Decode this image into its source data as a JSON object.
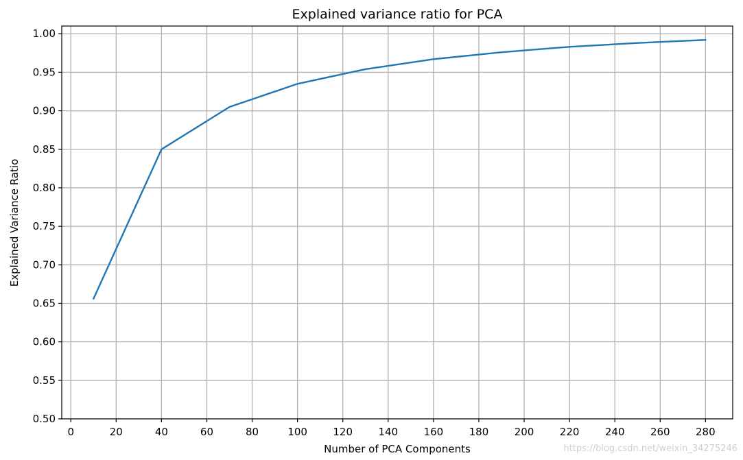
{
  "chart_data": {
    "type": "line",
    "title": "Explained variance ratio for PCA",
    "xlabel": "Number of PCA Components",
    "ylabel": "Explained Variance Ratio",
    "xlim": [
      -4,
      292
    ],
    "ylim": [
      0.5,
      1.01
    ],
    "xticks": [
      0,
      20,
      40,
      60,
      80,
      100,
      120,
      140,
      160,
      180,
      200,
      220,
      240,
      260,
      280
    ],
    "yticks": [
      0.5,
      0.55,
      0.6,
      0.65,
      0.7,
      0.75,
      0.8,
      0.85,
      0.9,
      0.95,
      1.0
    ],
    "grid": true,
    "series": [
      {
        "color": "#1f77b4",
        "x": [
          10,
          40,
          70,
          100,
          130,
          160,
          190,
          220,
          250,
          280
        ],
        "y": [
          0.656,
          0.85,
          0.905,
          0.935,
          0.954,
          0.967,
          0.976,
          0.983,
          0.988,
          0.992
        ]
      }
    ]
  },
  "watermark": "https://blog.csdn.net/weixin_34275246"
}
